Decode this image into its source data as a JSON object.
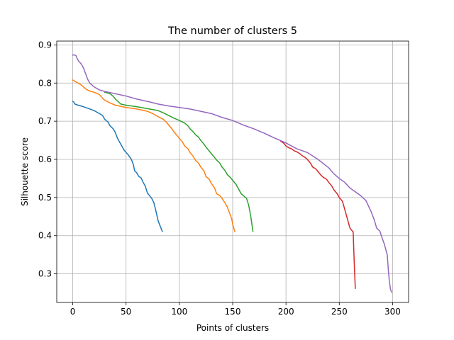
{
  "chart_data": {
    "type": "line",
    "title": "The number of clusters 5",
    "xlabel": "Points of clusters",
    "ylabel": "Silhouette score",
    "xlim": [
      -15,
      315
    ],
    "ylim": [
      0.225,
      0.91
    ],
    "xticks": [
      0,
      50,
      100,
      150,
      200,
      250,
      300
    ],
    "yticks": [
      0.3,
      0.4,
      0.5,
      0.6,
      0.7,
      0.8,
      0.9
    ],
    "xtick_labels": [
      "0",
      "50",
      "100",
      "150",
      "200",
      "250",
      "300"
    ],
    "ytick_labels": [
      "0.3",
      "0.4",
      "0.5",
      "0.6",
      "0.7",
      "0.8",
      "0.9"
    ],
    "grid": true,
    "legend": "none",
    "series": [
      {
        "color": "#1f77b4",
        "x": [
          0,
          1,
          2,
          5,
          10,
          15,
          20,
          25,
          28,
          30,
          33,
          35,
          38,
          40,
          42,
          44,
          46,
          48,
          50,
          52,
          55,
          57,
          58,
          60,
          62,
          64,
          66,
          68,
          70,
          72,
          74,
          76,
          78,
          80,
          82,
          84
        ],
        "y": [
          0.752,
          0.75,
          0.745,
          0.742,
          0.738,
          0.733,
          0.728,
          0.72,
          0.715,
          0.705,
          0.698,
          0.688,
          0.68,
          0.67,
          0.655,
          0.645,
          0.635,
          0.625,
          0.618,
          0.612,
          0.6,
          0.585,
          0.57,
          0.565,
          0.555,
          0.552,
          0.54,
          0.53,
          0.512,
          0.505,
          0.498,
          0.487,
          0.465,
          0.44,
          0.425,
          0.411
        ]
      },
      {
        "color": "#ff7f0e",
        "x": [
          0,
          3,
          5,
          8,
          10,
          12,
          15,
          20,
          25,
          28,
          30,
          35,
          40,
          50,
          60,
          70,
          75,
          80,
          85,
          88,
          90,
          93,
          95,
          98,
          100,
          103,
          105,
          108,
          110,
          113,
          115,
          118,
          120,
          123,
          125,
          128,
          130,
          133,
          135,
          138,
          140,
          143,
          145,
          147,
          149,
          150,
          152
        ],
        "y": [
          0.808,
          0.803,
          0.8,
          0.795,
          0.79,
          0.785,
          0.78,
          0.776,
          0.77,
          0.76,
          0.755,
          0.748,
          0.742,
          0.736,
          0.732,
          0.726,
          0.72,
          0.712,
          0.705,
          0.697,
          0.69,
          0.68,
          0.672,
          0.662,
          0.655,
          0.645,
          0.635,
          0.628,
          0.618,
          0.608,
          0.598,
          0.59,
          0.58,
          0.57,
          0.555,
          0.548,
          0.537,
          0.525,
          0.51,
          0.505,
          0.498,
          0.485,
          0.475,
          0.46,
          0.445,
          0.43,
          0.411
        ]
      },
      {
        "color": "#2ca02c",
        "x": [
          30,
          35,
          38,
          40,
          45,
          50,
          60,
          70,
          80,
          85,
          90,
          95,
          100,
          105,
          108,
          110,
          113,
          115,
          118,
          120,
          123,
          125,
          128,
          130,
          133,
          135,
          138,
          140,
          143,
          145,
          148,
          150,
          153,
          155,
          158,
          160,
          163,
          165,
          167,
          169
        ],
        "y": [
          0.776,
          0.772,
          0.765,
          0.758,
          0.745,
          0.742,
          0.738,
          0.733,
          0.728,
          0.722,
          0.715,
          0.708,
          0.702,
          0.695,
          0.688,
          0.68,
          0.672,
          0.665,
          0.658,
          0.65,
          0.64,
          0.632,
          0.622,
          0.615,
          0.605,
          0.598,
          0.59,
          0.58,
          0.57,
          0.56,
          0.552,
          0.545,
          0.535,
          0.525,
          0.51,
          0.505,
          0.498,
          0.48,
          0.45,
          0.411
        ]
      },
      {
        "color": "#d62728",
        "x": [
          195,
          198,
          200,
          203,
          205,
          208,
          210,
          213,
          215,
          218,
          220,
          223,
          225,
          228,
          230,
          233,
          235,
          238,
          240,
          243,
          245,
          248,
          250,
          253,
          255,
          258,
          260,
          262,
          263,
          264,
          265
        ],
        "y": [
          0.648,
          0.642,
          0.635,
          0.63,
          0.628,
          0.622,
          0.62,
          0.615,
          0.61,
          0.605,
          0.6,
          0.59,
          0.58,
          0.575,
          0.568,
          0.558,
          0.553,
          0.548,
          0.54,
          0.53,
          0.52,
          0.51,
          0.5,
          0.49,
          0.47,
          0.44,
          0.42,
          0.413,
          0.41,
          0.33,
          0.262
        ]
      },
      {
        "color": "#9467bd",
        "x": [
          0,
          1,
          2,
          3,
          4,
          5,
          6,
          8,
          10,
          12,
          14,
          16,
          18,
          20,
          25,
          30,
          40,
          50,
          60,
          70,
          80,
          90,
          100,
          110,
          120,
          130,
          140,
          150,
          160,
          170,
          180,
          190,
          200,
          210,
          220,
          230,
          240,
          245,
          250,
          255,
          260,
          265,
          270,
          275,
          280,
          283,
          285,
          288,
          290,
          292,
          295,
          296,
          297,
          298,
          299
        ],
        "y": [
          0.873,
          0.874,
          0.873,
          0.872,
          0.865,
          0.86,
          0.856,
          0.85,
          0.84,
          0.825,
          0.81,
          0.8,
          0.795,
          0.79,
          0.782,
          0.778,
          0.772,
          0.766,
          0.758,
          0.752,
          0.745,
          0.74,
          0.736,
          0.732,
          0.726,
          0.72,
          0.71,
          0.702,
          0.69,
          0.68,
          0.668,
          0.655,
          0.643,
          0.628,
          0.618,
          0.6,
          0.578,
          0.562,
          0.55,
          0.54,
          0.525,
          0.515,
          0.505,
          0.492,
          0.462,
          0.44,
          0.42,
          0.412,
          0.395,
          0.38,
          0.35,
          0.31,
          0.28,
          0.26,
          0.252
        ]
      }
    ]
  }
}
